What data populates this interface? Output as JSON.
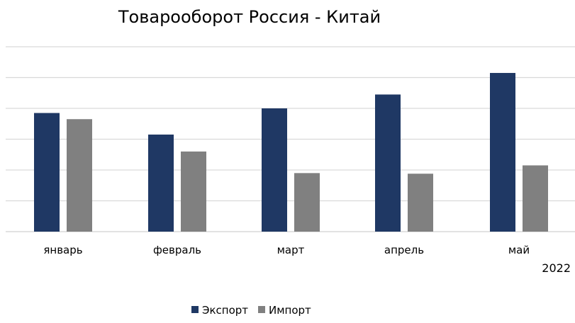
{
  "chart_data": {
    "type": "bar",
    "title": "Товарооборот Россия - Китай",
    "categories": [
      "январь",
      "февраль",
      "март",
      "апрель",
      "май"
    ],
    "xlabel": "2022",
    "ylabel": "",
    "ylim": [
      0,
      6
    ],
    "y_tick_labels_shown": false,
    "grid": true,
    "legend": "bottom",
    "series": [
      {
        "name": "Экспорт",
        "color": "#1f3864",
        "values": [
          3.85,
          3.15,
          4.0,
          4.45,
          5.15
        ]
      },
      {
        "name": "Импорт",
        "color": "#808080",
        "values": [
          3.65,
          2.6,
          1.9,
          1.88,
          2.15
        ]
      }
    ]
  }
}
